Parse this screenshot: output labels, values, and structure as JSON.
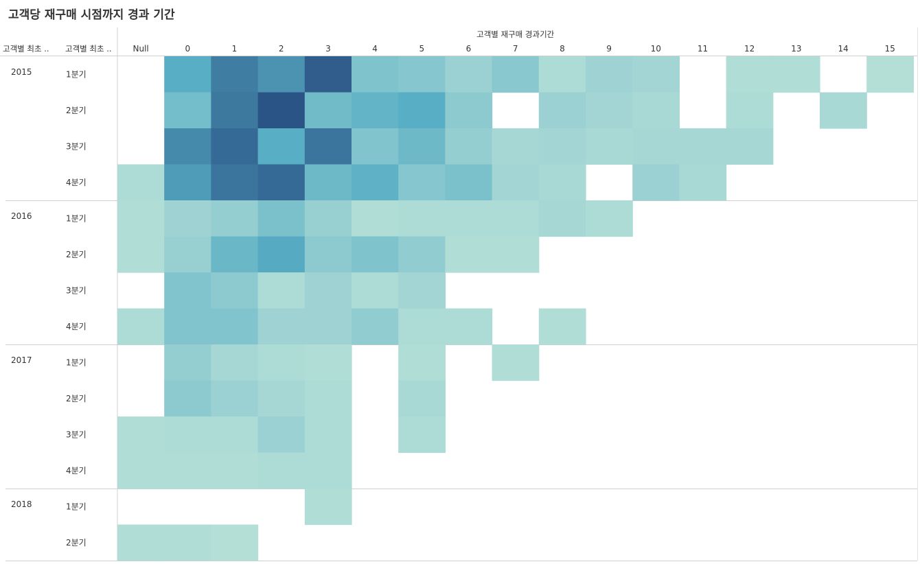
{
  "title": "고객당 재구매 시점까지 경과 기간",
  "chart_data": {
    "type": "heatmap",
    "title": "고객당 재구매 시점까지 경과 기간",
    "column_header": "고객별 재구매 경과기간",
    "row_header_1": "고객별 최초 ..",
    "row_header_2": "고객별 최초 ..",
    "columns": [
      "Null",
      "0",
      "1",
      "2",
      "3",
      "4",
      "5",
      "6",
      "7",
      "8",
      "9",
      "10",
      "11",
      "12",
      "13",
      "14",
      "15"
    ],
    "years": [
      {
        "label": "2015",
        "quarters": [
          "1분기",
          "2분기",
          "3분기",
          "4분기"
        ]
      },
      {
        "label": "2016",
        "quarters": [
          "1분기",
          "2분기",
          "3분기",
          "4분기"
        ]
      },
      {
        "label": "2017",
        "quarters": [
          "1분기",
          "2분기",
          "3분기",
          "4분기"
        ]
      },
      {
        "label": "2018",
        "quarters": [
          "1분기",
          "2분기"
        ]
      }
    ],
    "values": [
      [
        null,
        60,
        82,
        72,
        96,
        38,
        34,
        22,
        32,
        12,
        20,
        18,
        null,
        10,
        10,
        null,
        8
      ],
      [
        null,
        44,
        84,
        100,
        46,
        54,
        60,
        30,
        null,
        22,
        18,
        14,
        null,
        12,
        null,
        14,
        null
      ],
      [
        null,
        76,
        90,
        60,
        86,
        36,
        48,
        26,
        16,
        18,
        14,
        16,
        16,
        16,
        null,
        null,
        null
      ],
      [
        12,
        68,
        86,
        90,
        48,
        56,
        34,
        40,
        18,
        14,
        null,
        22,
        14,
        null,
        null,
        null,
        null
      ],
      [
        10,
        20,
        26,
        40,
        24,
        10,
        12,
        12,
        12,
        16,
        12,
        null,
        null,
        null,
        null,
        null,
        null
      ],
      [
        10,
        24,
        50,
        62,
        30,
        38,
        28,
        10,
        10,
        null,
        null,
        null,
        null,
        null,
        null,
        null,
        null
      ],
      [
        null,
        36,
        30,
        12,
        20,
        12,
        18,
        null,
        null,
        null,
        null,
        null,
        null,
        null,
        null,
        null,
        null
      ],
      [
        12,
        36,
        36,
        20,
        20,
        28,
        12,
        12,
        null,
        10,
        null,
        null,
        null,
        null,
        null,
        null,
        null
      ],
      [
        null,
        26,
        16,
        12,
        10,
        null,
        10,
        null,
        10,
        null,
        null,
        null,
        null,
        null,
        null,
        null,
        null
      ],
      [
        null,
        30,
        22,
        16,
        12,
        null,
        14,
        null,
        null,
        null,
        null,
        null,
        null,
        null,
        null,
        null,
        null
      ],
      [
        10,
        12,
        12,
        22,
        12,
        null,
        12,
        null,
        null,
        null,
        null,
        null,
        null,
        null,
        null,
        null,
        null
      ],
      [
        10,
        10,
        10,
        12,
        12,
        null,
        null,
        null,
        null,
        null,
        null,
        null,
        null,
        null,
        null,
        null,
        null
      ],
      [
        null,
        null,
        null,
        null,
        10,
        null,
        null,
        null,
        null,
        null,
        null,
        null,
        null,
        null,
        null,
        null,
        null
      ],
      [
        10,
        10,
        8,
        null,
        null,
        null,
        null,
        null,
        null,
        null,
        null,
        null,
        null,
        null,
        null,
        null,
        null
      ]
    ],
    "color_scale": {
      "low": "#c2e6da",
      "mid": "#58aec4",
      "high": "#2b5486"
    },
    "value_range": [
      0,
      100
    ]
  }
}
